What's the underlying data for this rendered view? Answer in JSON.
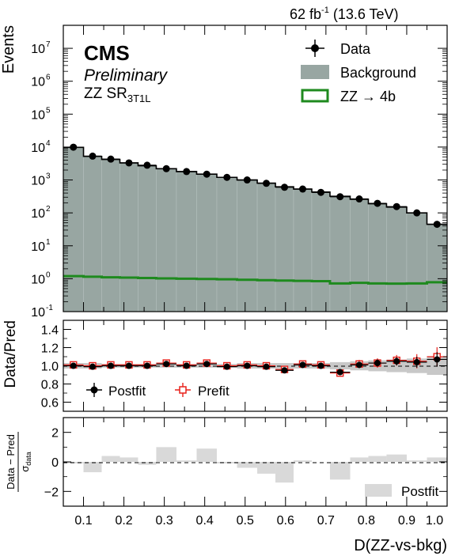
{
  "header": {
    "lumi_label": "62 fb",
    "lumi_sup": "-1",
    "energy_label": " (13.6 TeV)"
  },
  "experiment": {
    "name": "CMS",
    "status": "Preliminary",
    "region_prefix": "ZZ SR",
    "region_sub": "3T1L"
  },
  "legend": {
    "data": "Data",
    "background": "Background",
    "signal": "ZZ → 4b",
    "postfit": "Postfit",
    "prefit": "Prefit",
    "pull_postfit": "Postfit"
  },
  "colors": {
    "background_fill": "#98a6a2",
    "signal_line": "#1e8a1e",
    "data_marker": "#000000",
    "prefit_marker": "#e8201a",
    "pull_fill": "#d9d9d9",
    "ratio_unc": "#c8c8c8"
  },
  "axes": {
    "xlabel": "D(ZZ-vs-bkg)",
    "x_ticks": [
      "0.1",
      "0.2",
      "0.3",
      "0.4",
      "0.5",
      "0.6",
      "0.7",
      "0.8",
      "0.9",
      "1.0"
    ],
    "top_ylabel": "Events",
    "top_y_ticks": [
      "10",
      "10",
      "10",
      "10",
      "10",
      "10",
      "10",
      "10",
      "10"
    ],
    "top_y_exps": [
      "-1",
      "0",
      "1",
      "2",
      "3",
      "4",
      "5",
      "6",
      "7"
    ],
    "ratio_ylabel": "Data/Pred",
    "ratio_y_ticks": [
      "0.6",
      "0.8",
      "1.0",
      "1.2",
      "1.4"
    ],
    "pull_ylabel_num": "Data − Pred",
    "pull_ylabel_den": "σ",
    "pull_ylabel_den_sub": "data",
    "pull_y_ticks": [
      "−2",
      "0",
      "2"
    ]
  },
  "chart_data": [
    {
      "type": "bar",
      "panel": "main",
      "x_range": [
        0.05,
        1.0
      ],
      "ylim": [
        0.1,
        50000000
      ],
      "y_scale": "log",
      "bin_edges": [
        0.05,
        0.1,
        0.145,
        0.19,
        0.235,
        0.28,
        0.33,
        0.38,
        0.43,
        0.48,
        0.53,
        0.575,
        0.62,
        0.665,
        0.71,
        0.76,
        0.805,
        0.85,
        0.9,
        0.95,
        1.0
      ],
      "series": [
        {
          "name": "Background",
          "values": [
            9800,
            5200,
            4200,
            3300,
            2700,
            2200,
            1800,
            1500,
            1200,
            1000,
            800,
            620,
            530,
            430,
            320,
            260,
            190,
            150,
            100,
            45
          ]
        },
        {
          "name": "ZZ → 4b",
          "values": [
            1.2,
            1.15,
            1.1,
            1.08,
            1.05,
            1.02,
            1.0,
            0.98,
            0.96,
            0.93,
            0.9,
            0.88,
            0.86,
            0.84,
            0.72,
            0.75,
            0.72,
            0.71,
            0.72,
            0.78
          ]
        },
        {
          "name": "Data",
          "values": [
            9900,
            5300,
            4300,
            3300,
            2800,
            2200,
            1800,
            1500,
            1200,
            1000,
            790,
            600,
            530,
            420,
            310,
            265,
            195,
            155,
            100,
            45
          ]
        }
      ]
    },
    {
      "type": "scatter",
      "panel": "ratio",
      "ylim": [
        0.5,
        1.5
      ],
      "x": [
        0.075,
        0.1225,
        0.1675,
        0.2125,
        0.2575,
        0.305,
        0.355,
        0.405,
        0.455,
        0.505,
        0.5525,
        0.5975,
        0.6425,
        0.6875,
        0.735,
        0.7825,
        0.8275,
        0.875,
        0.925,
        0.975
      ],
      "series": [
        {
          "name": "Postfit",
          "values": [
            1.0,
            0.99,
            1.0,
            1.0,
            1.0,
            1.02,
            1.0,
            1.02,
            0.99,
            1.0,
            0.99,
            0.95,
            1.01,
            1.0,
            0.93,
            1.01,
            1.03,
            1.05,
            1.04,
            1.07
          ]
        },
        {
          "name": "Prefit",
          "values": [
            1.01,
            1.0,
            1.01,
            1.01,
            1.01,
            1.03,
            1.01,
            1.03,
            1.0,
            1.01,
            1.0,
            0.96,
            1.02,
            1.01,
            0.92,
            1.02,
            1.03,
            1.06,
            1.05,
            1.1
          ]
        }
      ],
      "unc_band": [
        0.03,
        0.03,
        0.02,
        0.02,
        0.02,
        0.02,
        0.02,
        0.02,
        0.02,
        0.03,
        0.03,
        0.03,
        0.03,
        0.03,
        0.04,
        0.05,
        0.06,
        0.07,
        0.08,
        0.1
      ]
    },
    {
      "type": "bar",
      "panel": "pull",
      "ylim": [
        -3,
        3
      ],
      "series": [
        {
          "name": "Postfit",
          "values": [
            -0.1,
            -0.7,
            0.4,
            0.3,
            -0.2,
            1.0,
            0.1,
            0.9,
            -0.1,
            -0.4,
            -0.8,
            -1.4,
            0.1,
            0.0,
            -1.2,
            0.3,
            0.4,
            0.5,
            0.1,
            0.3
          ]
        }
      ]
    }
  ]
}
